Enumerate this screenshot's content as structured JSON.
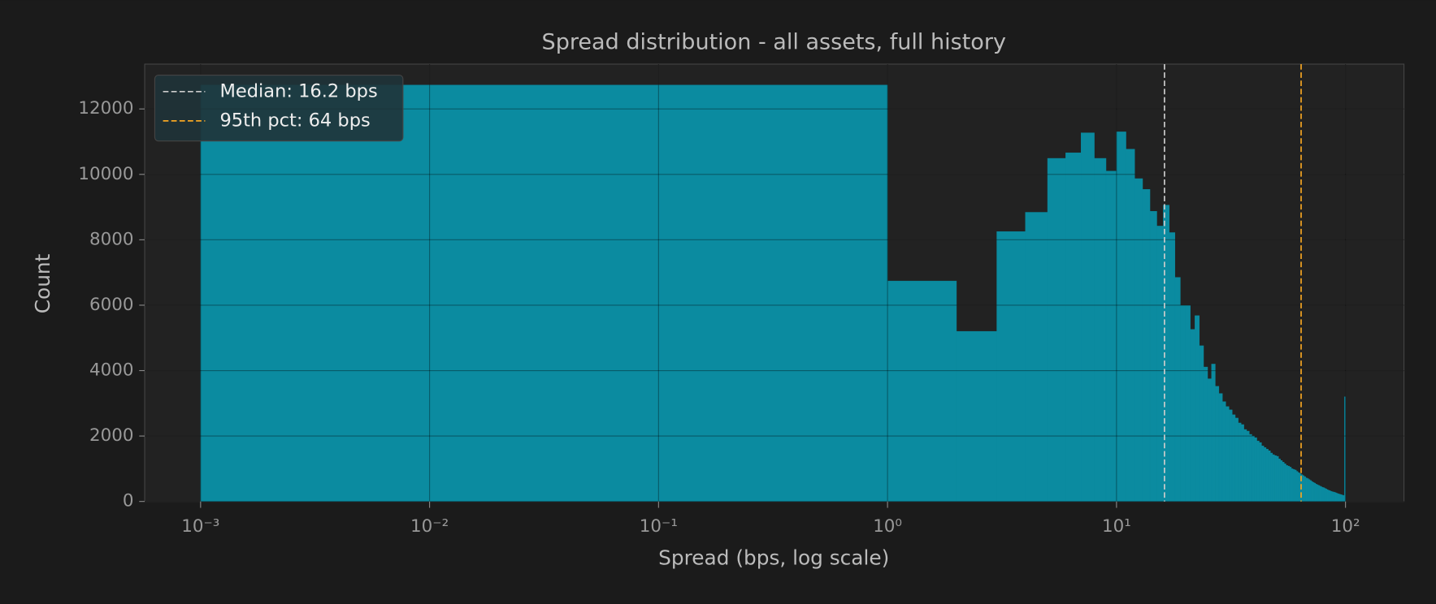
{
  "chart_data": {
    "type": "histogram",
    "title": "Spread distribution - all assets, full history",
    "xlabel": "Spread (bps, log scale)",
    "ylabel": "Count",
    "color": "#0b8ba0",
    "xscale": "log",
    "grid": true,
    "legend": "upper left",
    "bins": [
      0.001,
      1,
      2,
      3,
      4,
      5,
      6,
      7,
      8,
      9,
      10,
      11,
      12,
      13,
      14,
      15,
      16,
      17,
      18,
      19,
      20,
      21,
      22,
      23,
      24,
      25,
      26,
      27,
      28,
      29,
      30,
      31,
      32,
      33,
      34,
      35,
      36,
      37,
      38,
      39,
      40,
      41,
      42,
      43,
      44,
      45,
      46,
      47,
      48,
      49,
      50,
      51,
      52,
      53,
      54,
      55,
      56,
      57,
      58,
      59,
      60,
      61,
      62,
      63,
      64,
      65,
      66,
      67,
      68,
      69,
      70,
      71,
      72,
      73,
      74,
      75,
      76,
      77,
      78,
      79,
      80,
      81,
      82,
      83,
      84,
      85,
      86,
      87,
      88,
      89,
      90,
      91,
      92,
      93,
      94,
      95,
      96,
      97,
      98,
      99,
      100
    ],
    "counts": [
      12730,
      6740,
      5200,
      8250,
      8840,
      10490,
      10660,
      11270,
      10490,
      10100,
      11300,
      10770,
      9870,
      9540,
      8870,
      8420,
      9060,
      8220,
      6850,
      5990,
      5990,
      5260,
      5680,
      4760,
      4110,
      3750,
      4200,
      3520,
      3300,
      3050,
      2900,
      2800,
      2650,
      2550,
      2400,
      2350,
      2200,
      2150,
      2050,
      2000,
      1950,
      1850,
      1800,
      1700,
      1650,
      1600,
      1550,
      1480,
      1430,
      1400,
      1380,
      1300,
      1250,
      1200,
      1150,
      1100,
      1080,
      1050,
      1000,
      980,
      960,
      920,
      880,
      850,
      820,
      790,
      760,
      720,
      700,
      670,
      640,
      610,
      580,
      560,
      530,
      510,
      490,
      470,
      450,
      430,
      420,
      400,
      380,
      360,
      340,
      330,
      310,
      300,
      290,
      280,
      270,
      255,
      240,
      230,
      220,
      210,
      200,
      190,
      180,
      3200
    ],
    "vlines": [
      {
        "value": 16.2,
        "label": "Median: 16.2 bps",
        "color": "#cccccc"
      },
      {
        "value": 64,
        "label": "95th pct: 64 bps",
        "color": "#f5a623"
      }
    ],
    "xlim": [
      0.00057,
      180
    ],
    "xticks": [
      {
        "value": 0.001,
        "label": "10⁻³"
      },
      {
        "value": 0.01,
        "label": "10⁻²"
      },
      {
        "value": 0.1,
        "label": "10⁻¹"
      },
      {
        "value": 1,
        "label": "10⁰"
      },
      {
        "value": 10,
        "label": "10¹"
      },
      {
        "value": 100,
        "label": "10²"
      }
    ],
    "ylim": [
      0,
      13370
    ],
    "yticks": [
      0,
      2000,
      4000,
      6000,
      8000,
      10000,
      12000
    ]
  }
}
